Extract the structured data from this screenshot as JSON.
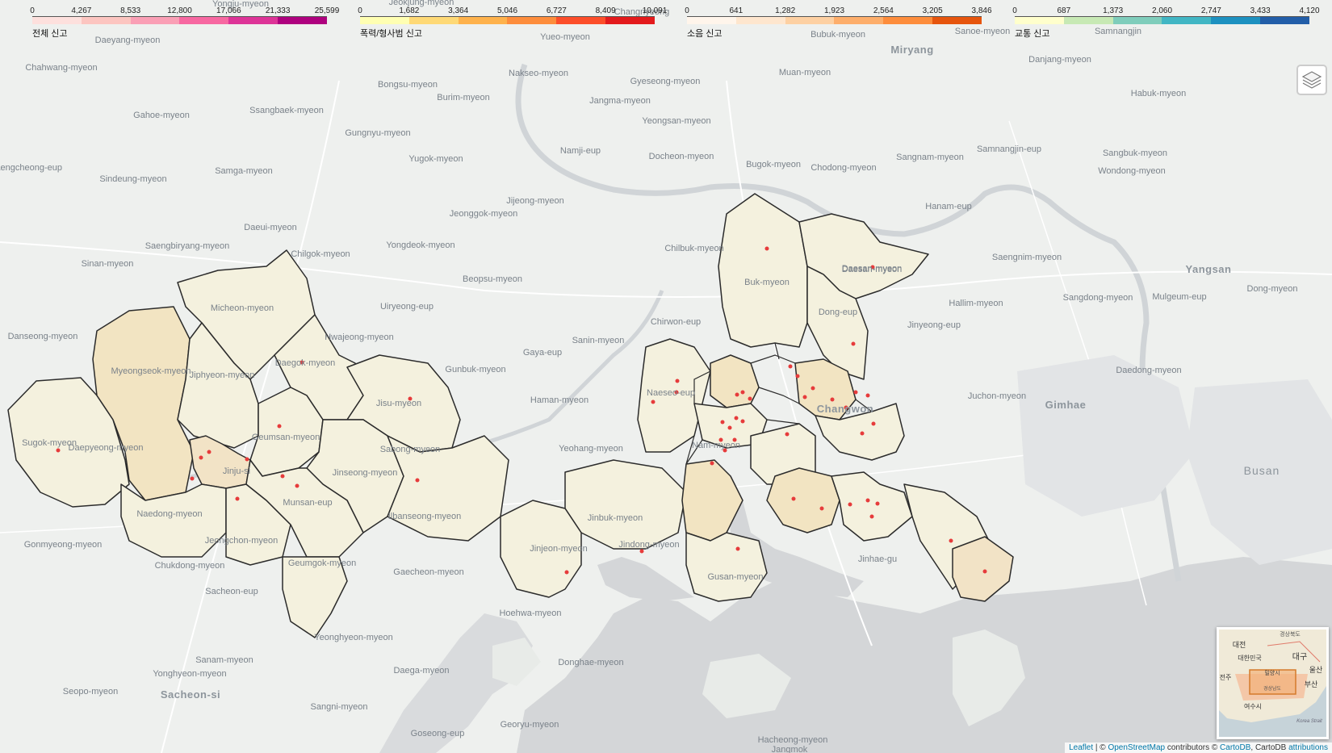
{
  "legends": [
    {
      "caption": "전체 신고",
      "ticks": [
        "0",
        "4,267",
        "8,533",
        "12,800",
        "17,066",
        "21,333",
        "25,599"
      ],
      "colors": [
        "#fde0dd",
        "#fcc5c0",
        "#fa9fb5",
        "#f768a1",
        "#dd3497",
        "#ae017e",
        "#7a0177"
      ]
    },
    {
      "caption": "폭력/형사범 신고",
      "ticks": [
        "0",
        "1,682",
        "3,364",
        "5,046",
        "6,727",
        "8,409",
        "10,091"
      ],
      "colors": [
        "#ffffb2",
        "#fed976",
        "#feb24c",
        "#fd8d3c",
        "#fc4e2a",
        "#e31a1c",
        "#b10026"
      ]
    },
    {
      "caption": "소음 신고",
      "ticks": [
        "0",
        "641",
        "1,282",
        "1,923",
        "2,564",
        "3,205",
        "3,846"
      ],
      "colors": [
        "#fff5eb",
        "#fee6ce",
        "#fdd0a2",
        "#fdae6b",
        "#fd8d3c",
        "#e6550d",
        "#a63603"
      ]
    },
    {
      "caption": "교통 신고",
      "ticks": [
        "0",
        "687",
        "1,373",
        "2,060",
        "2,747",
        "3,433",
        "4,120"
      ],
      "colors": [
        "#ffffcc",
        "#c7e9b4",
        "#7fcdbb",
        "#41b6c4",
        "#1d91c0",
        "#225ea8",
        "#253494"
      ]
    }
  ],
  "place_labels": [
    {
      "name": "Yongju-myeon"
    },
    {
      "name": "Jeokjung-myeon"
    },
    {
      "name": "Changnyeong"
    },
    {
      "name": "Yueo-myeon"
    },
    {
      "name": "Bubuk-myeon"
    },
    {
      "name": "Sanoe-myeon"
    },
    {
      "name": "Samnangjin"
    },
    {
      "name": "Daeyang-myeon"
    },
    {
      "name": "Nakseo-myeon"
    },
    {
      "name": "Miryang"
    },
    {
      "name": "Danjang-myeon"
    },
    {
      "name": "Chahwang-myeon"
    },
    {
      "name": "Bongsu-myeon"
    },
    {
      "name": "Burim-myeon"
    },
    {
      "name": "Gyeseong-myeon"
    },
    {
      "name": "Jangma-myeon"
    },
    {
      "name": "Muan-myeon"
    },
    {
      "name": "Habuk-myeon"
    },
    {
      "name": "Gahoe-myeon"
    },
    {
      "name": "Ssangbaek-myeon"
    },
    {
      "name": "Yeongsan-myeon"
    },
    {
      "name": "Gungnyu-myeon"
    },
    {
      "name": "Namji-eup"
    },
    {
      "name": "Saengcheong-eup"
    },
    {
      "name": "Yugok-myeon"
    },
    {
      "name": "Docheon-myeon"
    },
    {
      "name": "Bugok-myeon"
    },
    {
      "name": "Chodong-myeon"
    },
    {
      "name": "Sangnam-myeon"
    },
    {
      "name": "Samnangjin-eup"
    },
    {
      "name": "Sangbuk-myeon"
    },
    {
      "name": "Sindeung-myeon"
    },
    {
      "name": "Samga-myeon"
    },
    {
      "name": "Wondong-myeon"
    },
    {
      "name": "Jijeong-myeon"
    },
    {
      "name": "Hanam-eup"
    },
    {
      "name": "Jeonggok-myeon"
    },
    {
      "name": "Daeui-myeon"
    },
    {
      "name": "Saengbiryang-myeon"
    },
    {
      "name": "Yongdeok-myeon"
    },
    {
      "name": "Chilbuk-myeon"
    },
    {
      "name": "Daesan-myeon"
    },
    {
      "name": "Sinan-myeon"
    },
    {
      "name": "Chilgok-myeon"
    },
    {
      "name": "Beopsu-myeon"
    },
    {
      "name": "Saengnim-myeon"
    },
    {
      "name": "Yangsan"
    },
    {
      "name": "Sangdong-myeon"
    },
    {
      "name": "Mulgeum-eup"
    },
    {
      "name": "Dong-myeon"
    },
    {
      "name": "Uiryeong-eup"
    },
    {
      "name": "Hallim-myeon"
    },
    {
      "name": "Chirwon-eup"
    },
    {
      "name": "Jinyeong-eup"
    },
    {
      "name": "Danseong-myeon"
    },
    {
      "name": "Hwajeong-myeon"
    },
    {
      "name": "Sanin-myeon"
    },
    {
      "name": "Gaya-eup"
    },
    {
      "name": "Daedong-myeon"
    },
    {
      "name": "Gunbuk-myeon"
    },
    {
      "name": "Haman-myeon"
    },
    {
      "name": "Juchon-myeon"
    },
    {
      "name": "Gimhae"
    },
    {
      "name": "Yeohang-myeon"
    },
    {
      "name": "Busan"
    },
    {
      "name": "Gonmyeong-myeon"
    },
    {
      "name": "Chukdong-myeon"
    },
    {
      "name": "Sacheon-eup"
    },
    {
      "name": "Gaecheon-myeon"
    },
    {
      "name": "Hoehwa-myeon"
    },
    {
      "name": "Yeonghyeon-myeon"
    },
    {
      "name": "Yonghyeon-myeon"
    },
    {
      "name": "Sanam-myeon"
    },
    {
      "name": "Donghae-myeon"
    },
    {
      "name": "Daega-myeon"
    },
    {
      "name": "Seopo-myeon"
    },
    {
      "name": "Sacheon-si"
    },
    {
      "name": "Sangni-myeon"
    },
    {
      "name": "Goseong-eup"
    },
    {
      "name": "Georyu-myeon"
    },
    {
      "name": "Hacheong-myeon"
    },
    {
      "name": "Jangmok"
    },
    {
      "name": "Micheon-myeon"
    },
    {
      "name": "Myeongseok-myeon"
    },
    {
      "name": "Jiphyeon-myeon"
    },
    {
      "name": "Daegok-myeon"
    },
    {
      "name": "Jisu-myeon"
    },
    {
      "name": "Geumsan-myeon"
    },
    {
      "name": "Sugok-myeon"
    },
    {
      "name": "Daepyeong-myeon"
    },
    {
      "name": "Jinju-si"
    },
    {
      "name": "Jinseong-myeon"
    },
    {
      "name": "Sabong-myeon"
    },
    {
      "name": "Ilbanseong-myeon"
    },
    {
      "name": "Naedong-myeon"
    },
    {
      "name": "Munsan-eup"
    },
    {
      "name": "Jeongchon-myeon"
    },
    {
      "name": "Geumgok-myeon"
    },
    {
      "name": "Jinbuk-myeon"
    },
    {
      "name": "Jinjeon-myeon"
    },
    {
      "name": "Jindong-myeon"
    },
    {
      "name": "Naeseo-eup"
    },
    {
      "name": "Buk-myeon"
    },
    {
      "name": "Daesan-myeon"
    },
    {
      "name": "Dong-eup"
    },
    {
      "name": "Changwon"
    },
    {
      "name": "Jinhae-gu"
    },
    {
      "name": "Gusan-myeon"
    },
    {
      "name": "Nam-myeon"
    }
  ],
  "minimap": {
    "labels": [
      "경상북도",
      "대전",
      "대한민국",
      "대구",
      "울산",
      "밀양시",
      "부산",
      "경상남도",
      "여수시",
      "전주",
      "Korea Strait"
    ]
  },
  "layers_icon": "layers-icon",
  "attribution": {
    "leaflet": "Leaflet",
    "sep": " | © ",
    "osm": "OpenStreetMap",
    "contrib": " contributors © ",
    "cartodb": "CartoDB",
    "sep2": ", CartoDB ",
    "attr": "attributions"
  }
}
